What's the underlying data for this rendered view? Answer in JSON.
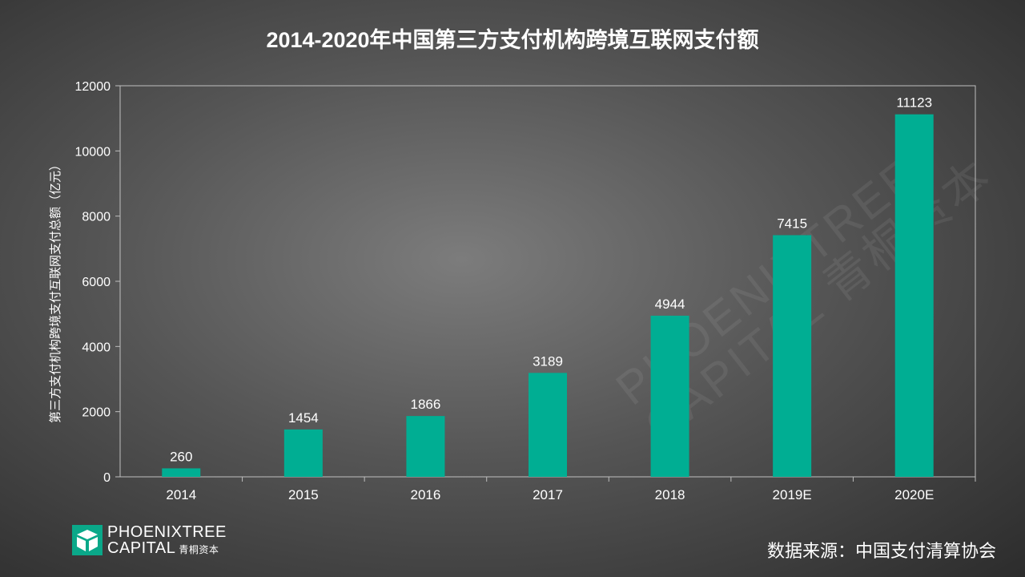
{
  "title": "2014-2020年中国第三方支付机构跨境互联网支付额",
  "source": "数据来源：中国支付清算协会",
  "logo": {
    "line1": "PHOENIXTREE",
    "line2": "CAPITAL",
    "cn": "青桐资本",
    "icon": "phoenixtree-logo-icon",
    "mark_color": "#0aa889"
  },
  "watermark": {
    "line1": "PHOENIXTREE",
    "line2": "CAPITAL 青桐资本"
  },
  "colors": {
    "bar": "#00ae93",
    "axis": "#bfbfbf",
    "text": "#ffffff"
  },
  "chart_data": {
    "type": "bar",
    "title": "2014-2020年中国第三方支付机构跨境互联网支付额",
    "xlabel": "",
    "ylabel": "第三方支付机构跨境支付互联网支付总额（亿元）",
    "categories": [
      "2014",
      "2015",
      "2016",
      "2017",
      "2018",
      "2019E",
      "2020E"
    ],
    "values": [
      260,
      1454,
      1866,
      3189,
      4944,
      7415,
      11123
    ],
    "data_labels": [
      "260",
      "1454",
      "1866",
      "3189",
      "4944",
      "7415",
      "11123"
    ],
    "ylim": [
      0,
      12000
    ],
    "yticks": [
      0,
      2000,
      4000,
      6000,
      8000,
      10000,
      12000
    ],
    "ytick_labels": [
      "0",
      "2000",
      "4000",
      "6000",
      "8000",
      "10000",
      "12000"
    ],
    "grid": false,
    "legend": "none"
  }
}
